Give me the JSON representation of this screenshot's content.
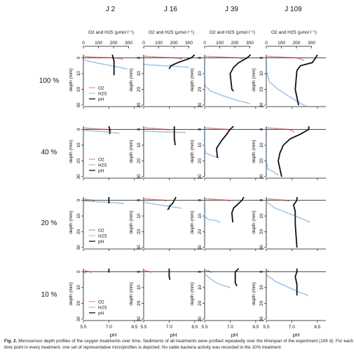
{
  "caption": {
    "label": "Fig. 2.",
    "text": "Microsensor depth profiles of the oxygen treatments over time. Sediments of all treatments were profiled repeatedly over the timespan of the experiment (109 d). For each time point in every treatment, one set of representative microprofiles is depicted. No cable bacteria activity was recorded in the 10% treatment."
  },
  "colors": {
    "o2": "#d42b2b",
    "h2s": "#4a8fd0",
    "ph": "#111111",
    "axis": "#111111"
  },
  "chart_data": {
    "type": "line",
    "columns": [
      "J 2",
      "J 16",
      "J 39",
      "J 109"
    ],
    "rows": [
      "100 %",
      "40 %",
      "20 %",
      "10 %"
    ],
    "top_axis": {
      "label": "O2 and H2S (µmol l⁻¹)",
      "ticks": [
        0,
        100,
        200,
        300
      ],
      "range": [
        0,
        300
      ]
    },
    "bottom_axis": {
      "label": "pH",
      "ticks": [
        5.5,
        7.0,
        8.5
      ],
      "range": [
        5.5,
        9.0
      ]
    },
    "y_axis": {
      "label": "depth (mm)",
      "ticks": [
        0,
        10,
        20,
        30
      ],
      "range": [
        -2,
        30
      ],
      "reversed": true
    },
    "legend": [
      "O2",
      "H2S",
      "pH"
    ],
    "panels": [
      {
        "row": "100 %",
        "col": "J 2",
        "o2": [
          [
            0,
            -1
          ],
          [
            60,
            -0.5
          ],
          [
            150,
            -0.2
          ],
          [
            195,
            0
          ],
          [
            250,
            0.5
          ],
          [
            265,
            1
          ]
        ],
        "h2s": [
          [
            0,
            0
          ],
          [
            0,
            1
          ],
          [
            30,
            2
          ],
          [
            80,
            3
          ],
          [
            160,
            4.5
          ],
          [
            240,
            6
          ],
          [
            290,
            7
          ]
        ],
        "ph": [
          [
            7.2,
            -2
          ],
          [
            7.25,
            0
          ],
          [
            7.3,
            2
          ],
          [
            7.3,
            5
          ],
          [
            7.3,
            11
          ]
        ]
      },
      {
        "row": "100 %",
        "col": "J 16",
        "o2": [
          [
            0,
            -1
          ],
          [
            100,
            -0.5
          ],
          [
            210,
            0
          ],
          [
            245,
            0.5
          ],
          [
            255,
            1
          ]
        ],
        "h2s": [
          [
            0,
            0
          ],
          [
            0,
            4
          ],
          [
            40,
            4.5
          ],
          [
            140,
            5
          ],
          [
            230,
            5.5
          ],
          [
            300,
            6
          ]
        ],
        "ph": [
          [
            8.5,
            -2
          ],
          [
            8.3,
            0
          ],
          [
            7.5,
            3
          ],
          [
            7.1,
            5
          ],
          [
            7.0,
            7
          ]
        ]
      },
      {
        "row": "100 %",
        "col": "J 39",
        "o2": [
          [
            0,
            -1
          ],
          [
            120,
            -0.5
          ],
          [
            230,
            0
          ],
          [
            250,
            0.5
          ],
          [
            255,
            1
          ]
        ],
        "h2s": [
          [
            0,
            0
          ],
          [
            0,
            15
          ],
          [
            5,
            18
          ],
          [
            40,
            21
          ],
          [
            120,
            24
          ],
          [
            220,
            27
          ],
          [
            300,
            29
          ]
        ],
        "ph": [
          [
            8.2,
            -2
          ],
          [
            8.0,
            0
          ],
          [
            7.5,
            3
          ],
          [
            7.2,
            6
          ],
          [
            7.0,
            10
          ],
          [
            7.1,
            20
          ],
          [
            7.2,
            21
          ]
        ]
      },
      {
        "row": "100 %",
        "col": "J 109",
        "o2": [
          [
            0,
            -1
          ],
          [
            100,
            -0.5
          ],
          [
            200,
            0
          ],
          [
            240,
            1
          ],
          [
            250,
            2
          ]
        ],
        "h2s": [
          [
            0,
            0
          ],
          [
            0,
            8
          ],
          [
            20,
            15
          ],
          [
            80,
            20
          ],
          [
            160,
            25
          ],
          [
            230,
            29
          ],
          [
            270,
            31
          ]
        ],
        "ph": [
          [
            8.5,
            -2
          ],
          [
            8.4,
            0
          ],
          [
            8.2,
            3
          ],
          [
            7.5,
            5
          ],
          [
            7.3,
            8
          ],
          [
            7.2,
            20
          ],
          [
            7.4,
            30
          ]
        ]
      },
      {
        "row": "40 %",
        "col": "J 2",
        "o2": [
          [
            0,
            -1
          ],
          [
            60,
            -0.5
          ],
          [
            150,
            0
          ],
          [
            185,
            0.5
          ]
        ],
        "h2s": [
          [
            0,
            0
          ],
          [
            0,
            0.5
          ],
          [
            60,
            1
          ],
          [
            150,
            1.5
          ],
          [
            240,
            2.5
          ]
        ],
        "ph": [
          [
            7.0,
            -2
          ],
          [
            7.05,
            0
          ],
          [
            7.05,
            2
          ],
          [
            7.05,
            3
          ]
        ]
      },
      {
        "row": "40 %",
        "col": "J 16",
        "o2": [
          [
            0,
            -1
          ],
          [
            80,
            -0.5
          ],
          [
            150,
            0
          ],
          [
            170,
            0.5
          ]
        ],
        "h2s": [
          [
            0,
            0
          ],
          [
            0,
            1
          ],
          [
            100,
            1.5
          ],
          [
            280,
            2
          ]
        ],
        "ph": [
          [
            7.3,
            -2
          ],
          [
            7.3,
            0
          ],
          [
            7.3,
            5
          ],
          [
            7.35,
            10
          ]
        ]
      },
      {
        "row": "40 %",
        "col": "J 39",
        "o2": [
          [
            0,
            -1
          ],
          [
            80,
            -0.5
          ],
          [
            150,
            0
          ],
          [
            165,
            0.5
          ]
        ],
        "h2s": [
          [
            0,
            0
          ],
          [
            0,
            10
          ],
          [
            5,
            15
          ],
          [
            60,
            17
          ],
          [
            100,
            18
          ]
        ],
        "ph": [
          [
            7.2,
            -2
          ],
          [
            7.0,
            0
          ],
          [
            6.8,
            3
          ],
          [
            6.5,
            7
          ],
          [
            6.2,
            12
          ],
          [
            6.25,
            18
          ]
        ]
      },
      {
        "row": "40 %",
        "col": "J 109",
        "o2": [
          [
            0,
            -1
          ],
          [
            80,
            -0.5
          ],
          [
            150,
            0
          ],
          [
            175,
            1
          ],
          [
            185,
            2
          ]
        ],
        "h2s": [
          [
            0,
            0
          ],
          [
            0,
            20
          ],
          [
            10,
            25
          ],
          [
            50,
            27
          ],
          [
            80,
            29
          ]
        ],
        "ph": [
          [
            8.0,
            -2
          ],
          [
            8.0,
            0
          ],
          [
            7.5,
            3
          ],
          [
            6.9,
            6
          ],
          [
            6.5,
            10
          ],
          [
            6.3,
            15
          ],
          [
            6.2,
            20
          ],
          [
            6.4,
            30
          ]
        ]
      },
      {
        "row": "20 %",
        "col": "J 2",
        "o2": [
          [
            0,
            -1
          ],
          [
            20,
            -0.5
          ],
          [
            60,
            0
          ],
          [
            70,
            0.5
          ]
        ],
        "h2s": [
          [
            0,
            0
          ],
          [
            0,
            0.5
          ],
          [
            100,
            1
          ],
          [
            200,
            1.5
          ],
          [
            270,
            2
          ]
        ],
        "ph": [
          [
            7.0,
            -2
          ],
          [
            7.0,
            0
          ],
          [
            7.0,
            1.5
          ],
          [
            7.0,
            2
          ]
        ]
      },
      {
        "row": "20 %",
        "col": "J 16",
        "o2": [
          [
            0,
            -1
          ],
          [
            60,
            -0.5
          ],
          [
            140,
            0
          ],
          [
            150,
            0.5
          ]
        ],
        "h2s": [
          [
            0,
            0
          ],
          [
            0,
            1
          ],
          [
            40,
            2
          ],
          [
            140,
            3.5
          ],
          [
            250,
            5
          ]
        ],
        "ph": [
          [
            7.4,
            -2
          ],
          [
            7.3,
            0
          ],
          [
            7.2,
            2
          ],
          [
            7.0,
            4
          ],
          [
            7.0,
            5
          ],
          [
            6.9,
            6
          ]
        ]
      },
      {
        "row": "20 %",
        "col": "J 39",
        "o2": [
          [
            0,
            -1
          ],
          [
            80,
            -0.5
          ],
          [
            150,
            0
          ],
          [
            170,
            0.5
          ]
        ],
        "h2s": [
          [
            0,
            0
          ],
          [
            0,
            10
          ],
          [
            20,
            12
          ],
          [
            80,
            13
          ],
          [
            100,
            14
          ]
        ],
        "ph": [
          [
            7.8,
            -2
          ],
          [
            7.7,
            0
          ],
          [
            7.4,
            3
          ],
          [
            7.2,
            5
          ],
          [
            7.1,
            8
          ],
          [
            7.15,
            14
          ]
        ]
      },
      {
        "row": "20 %",
        "col": "J 109",
        "o2": [
          [
            0,
            -1
          ],
          [
            60,
            -0.5
          ],
          [
            120,
            0
          ],
          [
            150,
            0.5
          ]
        ],
        "h2s": [
          [
            0,
            0
          ],
          [
            0,
            1
          ],
          [
            60,
            5
          ],
          [
            140,
            8
          ],
          [
            220,
            11
          ],
          [
            290,
            14
          ]
        ],
        "ph": [
          [
            7.3,
            -2
          ],
          [
            7.3,
            0
          ],
          [
            7.1,
            3
          ],
          [
            7.2,
            7
          ],
          [
            7.2,
            15
          ],
          [
            7.3,
            30
          ]
        ]
      },
      {
        "row": "10 %",
        "col": "J 2",
        "o2": [
          [
            0,
            -1
          ],
          [
            20,
            -0.5
          ],
          [
            40,
            0
          ],
          [
            55,
            0.5
          ]
        ],
        "h2s": [
          [
            0,
            0
          ],
          [
            0,
            0.5
          ],
          [
            20,
            0.8
          ]
        ],
        "ph": [
          [
            7.0,
            -2
          ],
          [
            7.0,
            0
          ],
          [
            7.0,
            0.5
          ]
        ]
      },
      {
        "row": "10 %",
        "col": "J 16",
        "o2": [
          [
            0,
            -1
          ],
          [
            20,
            -0.5
          ],
          [
            40,
            0
          ],
          [
            50,
            0.5
          ]
        ],
        "h2s": [
          [
            0,
            0
          ],
          [
            0,
            1
          ],
          [
            5,
            3
          ]
        ],
        "ph": [
          [
            7.0,
            -2
          ],
          [
            7.0,
            0
          ],
          [
            7.0,
            3
          ],
          [
            7.05,
            5
          ]
        ]
      },
      {
        "row": "10 %",
        "col": "J 39",
        "o2": [
          [
            0,
            -1
          ],
          [
            30,
            -0.5
          ],
          [
            40,
            0
          ],
          [
            45,
            0.5
          ]
        ],
        "h2s": [
          [
            0,
            0
          ],
          [
            0,
            1
          ],
          [
            20,
            3
          ],
          [
            60,
            6
          ],
          [
            100,
            8
          ],
          [
            170,
            10
          ]
        ],
        "ph": [
          [
            7.5,
            -2
          ],
          [
            7.3,
            0
          ],
          [
            7.3,
            3
          ],
          [
            7.3,
            7
          ],
          [
            7.4,
            9
          ]
        ]
      },
      {
        "row": "10 %",
        "col": "J 109",
        "o2": [
          [
            0,
            -1
          ],
          [
            15,
            -0.5
          ],
          [
            20,
            0
          ]
        ],
        "h2s": [
          [
            0,
            0
          ],
          [
            0,
            2
          ],
          [
            60,
            6
          ],
          [
            150,
            10
          ],
          [
            220,
            13
          ],
          [
            280,
            15
          ]
        ],
        "ph": [
          [
            7.3,
            -2
          ],
          [
            7.3,
            0
          ],
          [
            7.2,
            3
          ],
          [
            7.3,
            8
          ],
          [
            7.3,
            15
          ]
        ]
      }
    ]
  }
}
